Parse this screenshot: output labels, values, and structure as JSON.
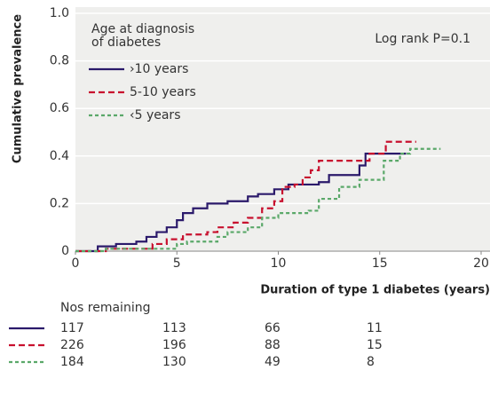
{
  "chart_data": {
    "type": "step",
    "ylabel": "Cumulative prevalence",
    "xlabel": "Duration of type 1 diabetes (years)",
    "annotation": "Log rank P=0.1",
    "legend_title": [
      "Age at diagnosis",
      "of diabetes"
    ],
    "xlim": [
      0,
      20
    ],
    "xticks": [
      0,
      5,
      10,
      15,
      20
    ],
    "ylim": [
      0,
      1
    ],
    "yticks": [
      0,
      0.2,
      0.4,
      0.6,
      0.8,
      {
        "value": 1,
        "label": "1.0"
      }
    ],
    "grid": true,
    "series": [
      {
        "name": "›10 years",
        "color": "#2b1a6b",
        "style": "solid",
        "x": [
          0,
          1.1,
          1.1,
          2,
          2,
          3,
          3,
          3.5,
          3.5,
          4,
          4,
          4.5,
          4.5,
          5,
          5,
          5.3,
          5.3,
          5.8,
          5.8,
          6.5,
          6.5,
          7.5,
          7.5,
          8.5,
          8.5,
          9,
          9,
          9.8,
          9.8,
          10.5,
          10.5,
          12,
          12,
          12.5,
          12.5,
          14,
          14,
          14.3,
          14.3,
          16.3
        ],
        "values": [
          0,
          0,
          0.02,
          0.02,
          0.03,
          0.03,
          0.04,
          0.04,
          0.06,
          0.06,
          0.08,
          0.08,
          0.1,
          0.1,
          0.13,
          0.13,
          0.16,
          0.16,
          0.18,
          0.18,
          0.2,
          0.2,
          0.21,
          0.21,
          0.23,
          0.23,
          0.24,
          0.24,
          0.26,
          0.26,
          0.28,
          0.28,
          0.29,
          0.29,
          0.32,
          0.32,
          0.36,
          0.36,
          0.41,
          0.41
        ]
      },
      {
        "name": "5-10 years",
        "color": "#c8102e",
        "style": "dashed",
        "x": [
          0,
          1.5,
          1.5,
          3.8,
          3.8,
          4.5,
          4.5,
          5.3,
          5.3,
          6.5,
          6.5,
          7,
          7,
          7.8,
          7.8,
          8.5,
          8.5,
          9.2,
          9.2,
          9.8,
          9.8,
          10.2,
          10.2,
          10.8,
          10.8,
          11.2,
          11.2,
          11.6,
          11.6,
          12,
          12,
          14.5,
          14.5,
          15.3,
          15.3,
          16.8
        ],
        "values": [
          0,
          0,
          0.01,
          0.01,
          0.03,
          0.03,
          0.05,
          0.05,
          0.07,
          0.07,
          0.08,
          0.08,
          0.1,
          0.1,
          0.12,
          0.12,
          0.14,
          0.14,
          0.18,
          0.18,
          0.21,
          0.21,
          0.27,
          0.27,
          0.28,
          0.28,
          0.31,
          0.31,
          0.34,
          0.34,
          0.38,
          0.38,
          0.41,
          0.41,
          0.46,
          0.46
        ]
      },
      {
        "name": "‹5 years",
        "color": "#5aa869",
        "style": "dotted",
        "x": [
          0,
          1.5,
          1.5,
          5,
          5,
          5.5,
          5.5,
          7,
          7,
          7.5,
          7.5,
          8.5,
          8.5,
          9.2,
          9.2,
          10,
          10,
          11.5,
          11.5,
          12,
          12,
          13,
          13,
          14,
          14,
          15.2,
          15.2,
          16,
          16,
          16.5,
          16.5,
          18
        ],
        "values": [
          0,
          0,
          0.01,
          0.01,
          0.03,
          0.03,
          0.04,
          0.04,
          0.06,
          0.06,
          0.08,
          0.08,
          0.1,
          0.1,
          0.14,
          0.14,
          0.16,
          0.16,
          0.17,
          0.17,
          0.22,
          0.22,
          0.27,
          0.27,
          0.3,
          0.3,
          0.38,
          0.38,
          0.41,
          0.41,
          0.43,
          0.43
        ]
      }
    ],
    "risk_table": {
      "title": "Nos remaining",
      "rows": [
        [
          117,
          113,
          66,
          11
        ],
        [
          226,
          196,
          88,
          15
        ],
        [
          184,
          130,
          49,
          8
        ]
      ]
    }
  }
}
